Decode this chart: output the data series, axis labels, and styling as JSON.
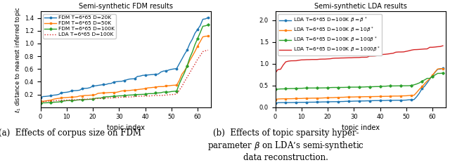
{
  "fdm_title": "Semi-synthetic FDM results",
  "lda_title": "Semi-synthetic LDA results",
  "xlabel": "topic index",
  "ylabel": "$\\ell_1$ distance to nearest inferred topic",
  "caption_a": "(a)  Effects of corpus size on FDM",
  "caption_b": "(b)  Effects of topic sparsity hyper-\nparameter $\\beta$ on LDA’s semi-synthetic\ndata reconstruction.",
  "fdm_legend": [
    "FDM T=6*65 D=20K",
    "FDM T=6*65 D=50K",
    "FDM T=6*65 D=100K",
    "LDA T=6*65 D=100K"
  ],
  "fdm_colors": [
    "#1f77b4",
    "#ff7f0e",
    "#2ca02c",
    "#d62728"
  ],
  "lda_legend": [
    "LDA T=6*65 D=100K $\\beta=\\beta^*$",
    "LDA T=6*65 D=100K $\\beta=10\\beta^*$",
    "LDA T=6*65 D=100K $\\beta=100\\beta^*$",
    "LDA T=6*65 D=100K $\\beta=1000\\beta^*$"
  ],
  "lda_colors": [
    "#1f77b4",
    "#ff7f0e",
    "#2ca02c",
    "#d62728"
  ],
  "fdm_ylim": [
    0,
    1.5
  ],
  "lda_ylim": [
    0,
    2.2
  ],
  "fdm_yticks": [
    0.2,
    0.4,
    0.6,
    0.8,
    1.0,
    1.2,
    1.4
  ],
  "lda_yticks": [
    0.0,
    0.5,
    1.0,
    1.5,
    2.0
  ]
}
